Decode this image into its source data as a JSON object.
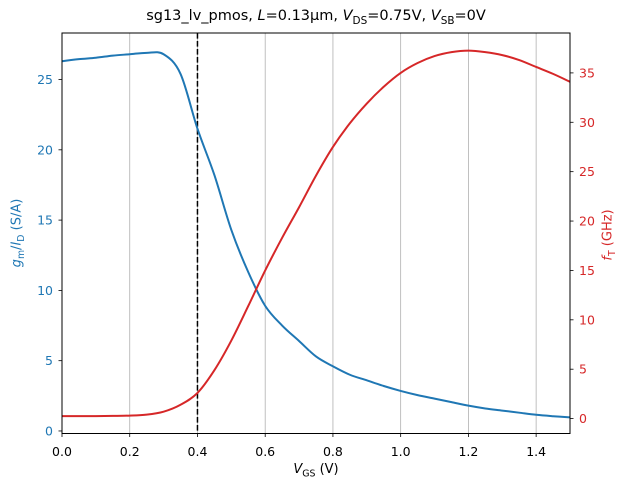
{
  "figure": {
    "title_segments": [
      {
        "t": "sg13_lv_pmos, "
      },
      {
        "t": "L",
        "italic": true
      },
      {
        "t": "=0.13μm, "
      },
      {
        "t": "V",
        "italic": true
      },
      {
        "t": "DS",
        "sub": true
      },
      {
        "t": "=0.75V, "
      },
      {
        "t": "V",
        "italic": true
      },
      {
        "t": "SB",
        "sub": true
      },
      {
        "t": "=0V"
      }
    ],
    "xlabel_segments": [
      {
        "t": "V",
        "italic": true
      },
      {
        "t": "GS",
        "sub": true
      },
      {
        "t": " (V)"
      }
    ],
    "ylabel_left_segments": [
      {
        "t": "g",
        "italic": true
      },
      {
        "t": "m",
        "sub": true
      },
      {
        "t": "/"
      },
      {
        "t": "I",
        "italic": true
      },
      {
        "t": "D",
        "sub": true
      },
      {
        "t": " (S/A)"
      }
    ],
    "ylabel_right_segments": [
      {
        "t": "f",
        "italic": true
      },
      {
        "t": "T",
        "sub": true
      },
      {
        "t": " (GHz)"
      }
    ]
  },
  "chart_data": {
    "type": "line",
    "title": "sg13_lv_pmos, L=0.13μm, V_DS=0.75V, V_SB=0V",
    "xlabel": "V_GS (V)",
    "ylabel_left": "g_m/I_D (S/A)",
    "ylabel_right": "f_T (GHz)",
    "grid": {
      "axis": "x",
      "color": "#b0b0b0",
      "on": true
    },
    "legend": "none",
    "x": [
      0.0,
      0.05,
      0.1,
      0.15,
      0.2,
      0.25,
      0.3,
      0.35,
      0.4,
      0.45,
      0.5,
      0.55,
      0.6,
      0.65,
      0.7,
      0.75,
      0.8,
      0.85,
      0.9,
      0.95,
      1.0,
      1.05,
      1.1,
      1.15,
      1.2,
      1.25,
      1.3,
      1.35,
      1.4,
      1.45,
      1.5
    ],
    "series": [
      {
        "name": "gm_over_id",
        "label": "g_m/I_D (S/A)",
        "axis": "left",
        "color": "#1f77b4",
        "values": [
          26.3,
          26.45,
          26.55,
          26.7,
          26.8,
          26.9,
          26.8,
          25.4,
          21.5,
          18.2,
          14.3,
          11.3,
          8.9,
          7.5,
          6.4,
          5.3,
          4.6,
          4.0,
          3.6,
          3.2,
          2.85,
          2.55,
          2.3,
          2.05,
          1.8,
          1.6,
          1.45,
          1.3,
          1.15,
          1.05,
          0.97
        ]
      },
      {
        "name": "ft",
        "label": "f_T (GHz)",
        "axis": "right",
        "color": "#d62728",
        "values": [
          0.25,
          0.25,
          0.25,
          0.27,
          0.3,
          0.4,
          0.7,
          1.4,
          2.6,
          4.9,
          7.9,
          11.4,
          15.0,
          18.3,
          21.4,
          24.6,
          27.5,
          29.9,
          31.9,
          33.6,
          35.0,
          36.0,
          36.7,
          37.1,
          37.25,
          37.1,
          36.8,
          36.3,
          35.6,
          34.9,
          34.1
        ]
      }
    ],
    "x_axis": {
      "min": 0.0,
      "max": 1.5,
      "ticks": [
        0.0,
        0.2,
        0.4,
        0.6,
        0.8,
        1.0,
        1.2,
        1.4
      ],
      "tick_labels": [
        "0.0",
        "0.2",
        "0.4",
        "0.6",
        "0.8",
        "1.0",
        "1.2",
        "1.4"
      ],
      "label_color": "#000000"
    },
    "y_left": {
      "min": -0.18,
      "max": 28.31,
      "ticks": [
        0,
        5,
        10,
        15,
        20,
        25
      ],
      "tick_labels": [
        "0",
        "5",
        "10",
        "15",
        "20",
        "25"
      ],
      "label_color": "#1f77b4"
    },
    "y_right": {
      "min": -1.51,
      "max": 39.04,
      "ticks": [
        0,
        5,
        10,
        15,
        20,
        25,
        30,
        35
      ],
      "tick_labels": [
        "0",
        "5",
        "10",
        "15",
        "20",
        "25",
        "30",
        "35"
      ],
      "label_color": "#d62728"
    },
    "vline": {
      "x": 0.4,
      "style": "dashed",
      "color": "#000000"
    },
    "spine_color": "#000000"
  }
}
